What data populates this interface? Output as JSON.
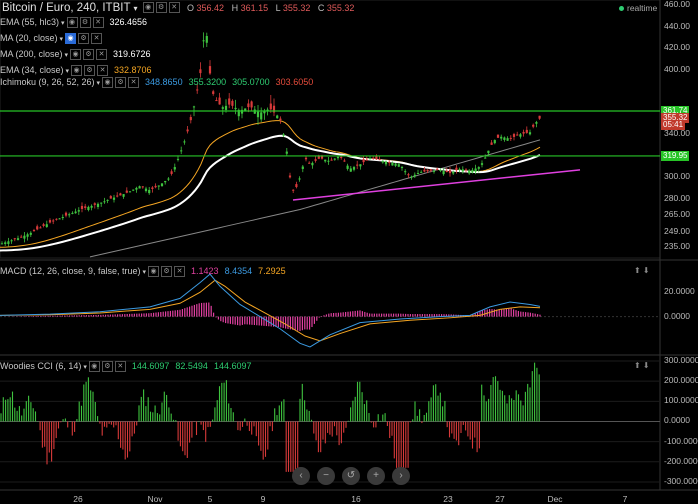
{
  "header": {
    "title": "Bitcoin / Euro, 240, ITBIT",
    "ohlc": [
      {
        "k": "O",
        "v": "356.42"
      },
      {
        "k": "H",
        "v": "361.15"
      },
      {
        "k": "L",
        "v": "355.32"
      },
      {
        "k": "C",
        "v": "355.32"
      }
    ],
    "realtime": "realtime"
  },
  "legend": [
    {
      "label": "EMA (55, hlc3)",
      "value": "326.4656",
      "value_color": "#ffffff",
      "settings_on": false
    },
    {
      "label": "MA (20, close)",
      "value": "",
      "value_color": "#ffffff",
      "settings_on": true
    },
    {
      "label": "MA (200, close)",
      "value": "319.6726",
      "value_color": "#ffffff",
      "settings_on": false
    },
    {
      "label": "EMA (34, close)",
      "value": "332.8706",
      "value_color": "#f5a623",
      "settings_on": false
    }
  ],
  "ichimoku": {
    "label": "Ichimoku (9, 26, 52, 26)",
    "values": [
      {
        "v": "348.8650",
        "color": "#3b9ae1"
      },
      {
        "v": "355.3200",
        "color": "#2ecc71"
      },
      {
        "v": "305.0700",
        "color": "#2ecc71"
      },
      {
        "v": "303.6050",
        "color": "#e74c3c"
      }
    ]
  },
  "macd": {
    "label": "MACD (12, 26, close, 9, false, true)",
    "values": [
      {
        "v": "1.1423",
        "color": "#e040a0"
      },
      {
        "v": "8.4354",
        "color": "#3b9ae1"
      },
      {
        "v": "7.2925",
        "color": "#f5a623"
      }
    ]
  },
  "cci": {
    "label": "Woodies CCI (6, 14)",
    "values": [
      {
        "v": "144.6097",
        "color": "#2ecc71"
      },
      {
        "v": "82.5494",
        "color": "#2ecc71"
      },
      {
        "v": "144.6097",
        "color": "#2ecc71"
      }
    ]
  },
  "price_tags": [
    {
      "text": "361.74",
      "bg": "#27c427",
      "price": 361.74
    },
    {
      "text": "355.32",
      "bg": "#c0392b",
      "price": 355.32
    },
    {
      "text": "05:41",
      "bg": "#c0392b",
      "price": 349.0
    },
    {
      "text": "319.95",
      "bg": "#27c427",
      "price": 319.95
    }
  ],
  "nav": [
    "‹",
    "−",
    "↺",
    "+",
    "›"
  ],
  "colors": {
    "up": "#3fc43f",
    "down": "#d83a3a",
    "support": "#27c427",
    "trend": "#e040e0",
    "ema34": "#f5a623",
    "ema55": "#ffffff",
    "ma200": "#888888",
    "macd": "#3b9ae1",
    "signal": "#f5a623",
    "hist": "#e040a0"
  },
  "chart_data": [
    {
      "type": "candlestick",
      "title": "Bitcoin / Euro, 240, ITBIT",
      "x_ticks": [
        "26",
        "Nov",
        "5",
        "9",
        "16",
        "23",
        "27",
        "Dec",
        "7"
      ],
      "y_ticks": [
        235,
        249,
        265,
        280,
        300,
        319.95,
        340,
        355.32,
        361.74,
        400,
        420,
        440,
        "460.00"
      ],
      "y_tick_labels": [
        "235.00",
        "249.00",
        "265.00",
        "280.00",
        "300.00",
        "319.95",
        "340.00",
        "355.32",
        "361.74",
        "400.00",
        "420.00",
        "440.00",
        "460.00"
      ],
      "ylim": [
        225,
        465
      ],
      "close_path": [
        [
          0,
          238
        ],
        [
          10,
          241
        ],
        [
          20,
          244
        ],
        [
          30,
          248
        ],
        [
          40,
          253
        ],
        [
          50,
          258
        ],
        [
          60,
          262
        ],
        [
          70,
          266
        ],
        [
          80,
          270
        ],
        [
          90,
          273
        ],
        [
          100,
          276
        ],
        [
          110,
          280
        ],
        [
          120,
          283
        ],
        [
          130,
          287
        ],
        [
          140,
          292
        ],
        [
          150,
          288
        ],
        [
          160,
          293
        ],
        [
          170,
          300
        ],
        [
          175,
          310
        ],
        [
          180,
          322
        ],
        [
          185,
          335
        ],
        [
          190,
          350
        ],
        [
          195,
          370
        ],
        [
          198,
          385
        ],
        [
          201,
          400
        ],
        [
          203,
          420
        ],
        [
          205,
          445
        ],
        [
          207,
          430
        ],
        [
          209,
          405
        ],
        [
          212,
          380
        ],
        [
          216,
          372
        ],
        [
          222,
          365
        ],
        [
          230,
          368
        ],
        [
          240,
          362
        ],
        [
          250,
          366
        ],
        [
          260,
          360
        ],
        [
          270,
          364
        ],
        [
          280,
          355
        ],
        [
          286,
          330
        ],
        [
          290,
          300
        ],
        [
          294,
          285
        ],
        [
          300,
          300
        ],
        [
          305,
          318
        ],
        [
          310,
          312
        ],
        [
          320,
          318
        ],
        [
          330,
          315
        ],
        [
          340,
          320
        ],
        [
          350,
          308
        ],
        [
          360,
          312
        ],
        [
          370,
          318
        ],
        [
          380,
          316
        ],
        [
          390,
          314
        ],
        [
          400,
          312
        ],
        [
          410,
          300
        ],
        [
          420,
          305
        ],
        [
          430,
          306
        ],
        [
          440,
          307
        ],
        [
          450,
          304
        ],
        [
          460,
          308
        ],
        [
          470,
          306
        ],
        [
          480,
          310
        ],
        [
          485,
          318
        ],
        [
          490,
          328
        ],
        [
          495,
          335
        ],
        [
          500,
          338
        ],
        [
          510,
          336
        ],
        [
          520,
          340
        ],
        [
          530,
          342
        ],
        [
          535,
          350
        ],
        [
          540,
          355
        ]
      ],
      "series": [
        {
          "name": "EMA (34, close)",
          "value": 332.8706
        },
        {
          "name": "EMA (55, hlc3)",
          "value": 326.4656
        },
        {
          "name": "MA (200, close)",
          "value": 319.6726
        }
      ],
      "annotations": [
        {
          "type": "hline",
          "price": 361.74,
          "color": "#27c427"
        },
        {
          "type": "hline",
          "price": 319.95,
          "color": "#27c427"
        },
        {
          "type": "trendline",
          "from": [
            293,
            279
          ],
          "to": [
            580,
            307
          ],
          "color": "#e040e0"
        }
      ]
    },
    {
      "type": "line",
      "title": "MACD (12, 26, close, 9, false, true)",
      "y_ticks": [
        "20.0000",
        "0.0000"
      ],
      "ylim": [
        -30,
        45
      ],
      "series": [
        {
          "name": "MACD",
          "values": [
            [
              0,
              1
            ],
            [
              50,
              2
            ],
            [
              100,
              4
            ],
            [
              150,
              8
            ],
            [
              180,
              15
            ],
            [
              200,
              28
            ],
            [
              210,
              35
            ],
            [
              220,
              25
            ],
            [
              240,
              10
            ],
            [
              260,
              0
            ],
            [
              280,
              -10
            ],
            [
              300,
              -22
            ],
            [
              310,
              -25
            ],
            [
              330,
              -15
            ],
            [
              360,
              -5
            ],
            [
              400,
              -2
            ],
            [
              440,
              0
            ],
            [
              470,
              1
            ],
            [
              490,
              8
            ],
            [
              510,
              12
            ],
            [
              530,
              10
            ],
            [
              540,
              8.4354
            ]
          ]
        },
        {
          "name": "Signal",
          "values": [
            [
              0,
              1
            ],
            [
              50,
              1.5
            ],
            [
              100,
              3
            ],
            [
              150,
              6
            ],
            [
              180,
              11
            ],
            [
              200,
              20
            ],
            [
              215,
              30
            ],
            [
              225,
              25
            ],
            [
              245,
              12
            ],
            [
              265,
              3
            ],
            [
              285,
              -6
            ],
            [
              305,
              -16
            ],
            [
              320,
              -20
            ],
            [
              340,
              -14
            ],
            [
              370,
              -6
            ],
            [
              410,
              -3
            ],
            [
              450,
              -1
            ],
            [
              480,
              1
            ],
            [
              500,
              6
            ],
            [
              520,
              8
            ],
            [
              540,
              7.2925
            ]
          ]
        }
      ]
    },
    {
      "type": "bar",
      "title": "Woodies CCI (6, 14)",
      "y_ticks": [
        "300.0000",
        "200.0000",
        "100.0000",
        "0.0000",
        "-100.0000",
        "-200.0000",
        "-300.0000"
      ],
      "ylim": [
        -340,
        320
      ]
    }
  ]
}
